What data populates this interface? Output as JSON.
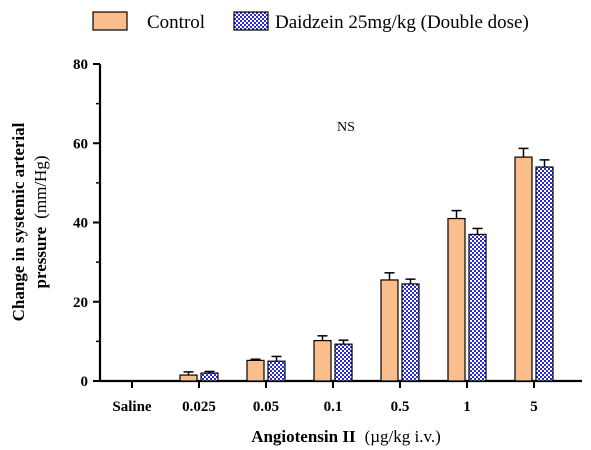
{
  "chart_data": {
    "type": "bar",
    "categories": [
      "Saline",
      "0.025",
      "0.05",
      "0.1",
      "0.5",
      "1",
      "5"
    ],
    "series": [
      {
        "name": "Control",
        "values": [
          0,
          1.5,
          5.2,
          10.2,
          25.5,
          41,
          56.5
        ],
        "errors": [
          0,
          0.8,
          0.3,
          1.2,
          1.8,
          2.0,
          2.2
        ],
        "color": "#f9be8c",
        "pattern": "solid"
      },
      {
        "name": "Daidzein 25mg/kg (Double dose)",
        "values": [
          0,
          2.0,
          5.0,
          9.3,
          24.5,
          37,
          54
        ],
        "errors": [
          0,
          0.4,
          1.2,
          1.0,
          1.2,
          1.5,
          1.8
        ],
        "color": "#2a2ad6",
        "pattern": "checkered"
      }
    ],
    "xlabel_bold": "Angiotensin II",
    "xlabel_units": "(µg/kg i.v.)",
    "ylabel_line1": "Change in systemic arterial",
    "ylabel_line2_bold": "pressure",
    "ylabel_line2_units": "(mm/Hg)",
    "ylim": [
      0,
      80
    ],
    "yticks": [
      0,
      20,
      40,
      60,
      80
    ],
    "annotation": "NS",
    "legend_position": "top"
  }
}
